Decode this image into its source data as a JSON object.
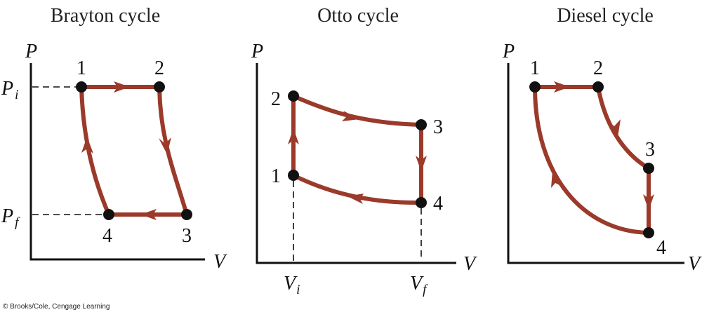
{
  "colors": {
    "process_path": "#9b3a2a",
    "points": "#111111",
    "axes": "#111111"
  },
  "diagrams": [
    {
      "title": "Brayton cycle",
      "y_axis": "P",
      "x_axis": "V",
      "pressure_labels": {
        "initial": {
          "main": "P",
          "sub": "i"
        },
        "final": {
          "main": "P",
          "sub": "f"
        }
      },
      "points": [
        "1",
        "2",
        "3",
        "4"
      ]
    },
    {
      "title": "Otto cycle",
      "y_axis": "P",
      "x_axis": "V",
      "volume_labels": {
        "initial": {
          "main": "V",
          "sub": "i"
        },
        "final": {
          "main": "V",
          "sub": "f"
        }
      },
      "points": [
        "1",
        "2",
        "3",
        "4"
      ]
    },
    {
      "title": "Diesel cycle",
      "y_axis": "P",
      "x_axis": "V",
      "points": [
        "1",
        "2",
        "3",
        "4"
      ]
    }
  ],
  "credit": "© Brooks/Cole, Cengage Learning"
}
